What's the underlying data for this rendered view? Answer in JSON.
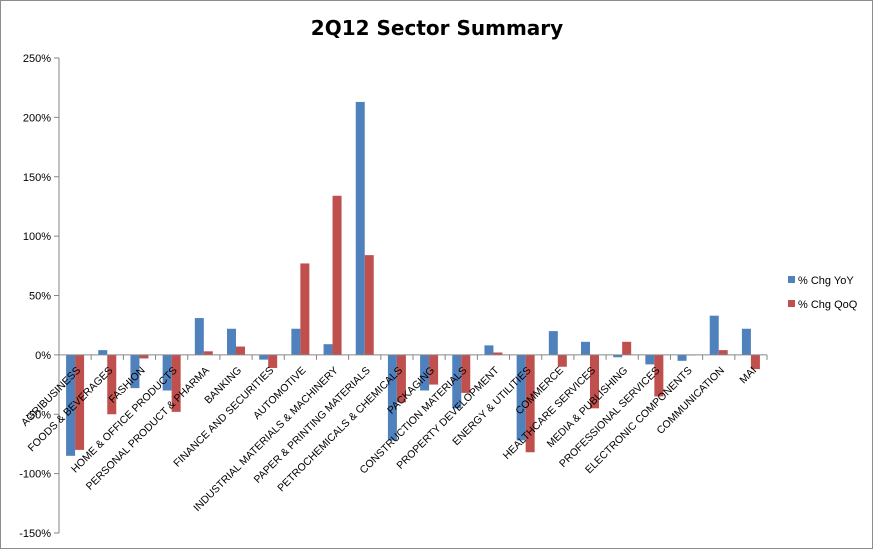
{
  "chart_data": {
    "type": "bar",
    "title": "2Q12 Sector Summary",
    "xlabel": "",
    "ylabel": "",
    "ylim": [
      -150,
      250
    ],
    "yticks": [
      -150,
      -100,
      -50,
      0,
      50,
      100,
      150,
      200,
      250
    ],
    "ytick_labels": [
      "-150%",
      "-100%",
      "-50%",
      "0%",
      "50%",
      "100%",
      "150%",
      "200%",
      "250%"
    ],
    "grid": false,
    "legend_position": "right",
    "categories": [
      "AGRIBUSINESS",
      "FOODS & BEVERAGES",
      "FASHION",
      "HOME & OFFICE PRODUCTS",
      "PERSONAL PRODUCT & PHARMA",
      "BANKING",
      "FINANCE AND SECURITIES",
      "AUTOMOTIVE",
      "INDUSTRIAL MATERIALS & MACHINERY",
      "PAPER & PRINTING MATERIALS",
      "PETROCHEMICALS & CHEMICALS",
      "PACKAGING",
      "CONSTRUCTION MATERIALS",
      "PROPERTY DEVELOPMENT",
      "ENERGY & UTILITIES",
      "COMMERCE",
      "HEALTHCARE SERVICES",
      "MEDIA & PUBLISHING",
      "PROFESSIONAL SERVICES",
      "ELECTRONIC COMPONENTS",
      "COMMUNICATION",
      "MAI"
    ],
    "series": [
      {
        "name": "% Chg YoY",
        "color": "#4f81bd",
        "values": [
          -85,
          4,
          -28,
          -30,
          31,
          22,
          -4,
          22,
          9,
          213,
          -72,
          -30,
          -45,
          8,
          -72,
          20,
          11,
          -2,
          -8,
          -5,
          33,
          22
        ]
      },
      {
        "name": "% Chg QoQ",
        "color": "#c0504d",
        "values": [
          -80,
          -50,
          -3,
          -48,
          3,
          7,
          -11,
          77,
          134,
          84,
          -40,
          -25,
          -32,
          2,
          -82,
          -10,
          -45,
          11,
          -35,
          0,
          4,
          -12
        ]
      }
    ]
  }
}
